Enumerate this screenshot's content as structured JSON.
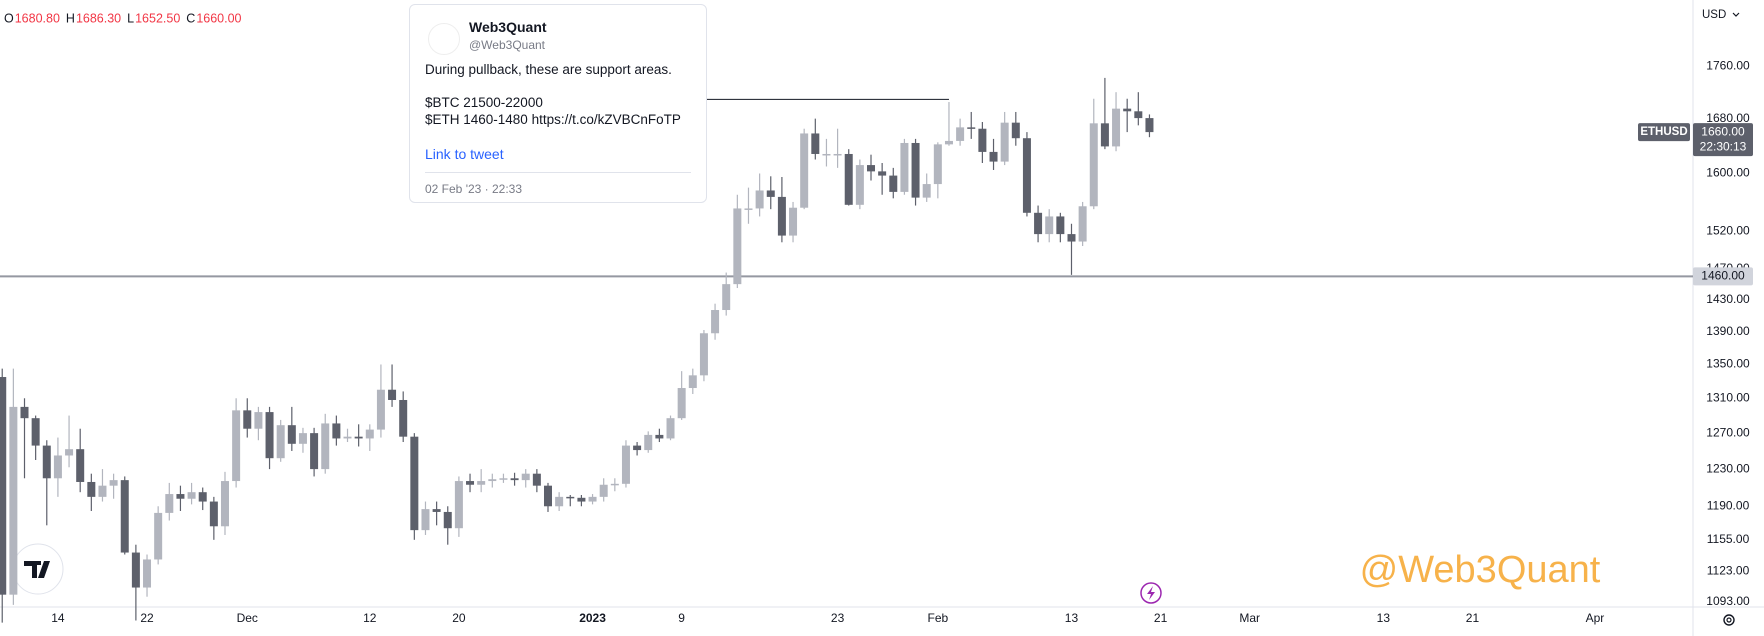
{
  "chart_data": {
    "type": "candlestick",
    "ohlc_legend": [
      {
        "label": "O",
        "value": "1680.80"
      },
      {
        "label": "H",
        "value": "1686.30"
      },
      {
        "label": "L",
        "value": "1652.50"
      },
      {
        "label": "C",
        "value": "1660.00"
      }
    ],
    "currency": "USD",
    "symbol": "ETHUSD",
    "open": [
      1335,
      1100,
      1300,
      1287,
      1256,
      1220,
      1245,
      1252,
      1216,
      1200,
      1212,
      1218,
      1142,
      1107,
      1135,
      1183,
      1203,
      1198,
      1205,
      1195,
      1169,
      1217,
      1296,
      1275,
      1294,
      1242,
      1279,
      1258,
      1270,
      1230,
      1281,
      1264,
      1266,
      1264,
      1274,
      1320,
      1308,
      1266,
      1165,
      1187,
      1184,
      1167,
      1217,
      1213,
      1217,
      1219,
      1220,
      1218,
      1225,
      1212,
      1190,
      1200,
      1199,
      1195,
      1200,
      1213,
      1214,
      1256,
      1251,
      1268,
      1264,
      1287,
      1322,
      1337,
      1388,
      1417,
      1450,
      1551,
      1551,
      1576,
      1567,
      1514,
      1552,
      1658,
      1628,
      1628,
      1628,
      1556,
      1612,
      1603,
      1597,
      1574,
      1644,
      1566,
      1585,
      1642,
      1647,
      1667,
      1665,
      1631,
      1617,
      1674,
      1651,
      1545,
      1516,
      1540,
      1516,
      1506,
      1554,
      1673,
      1639,
      1695,
      1691,
      1680.8
    ],
    "high": [
      1345,
      1345,
      1310,
      1290,
      1262,
      1265,
      1290,
      1275,
      1225,
      1230,
      1225,
      1222,
      1150,
      1140,
      1190,
      1215,
      1212,
      1215,
      1210,
      1200,
      1227,
      1310,
      1310,
      1300,
      1300,
      1285,
      1300,
      1276,
      1276,
      1292,
      1290,
      1275,
      1280,
      1280,
      1350,
      1350,
      1318,
      1270,
      1195,
      1195,
      1190,
      1222,
      1225,
      1230,
      1225,
      1225,
      1226,
      1230,
      1230,
      1215,
      1205,
      1202,
      1202,
      1203,
      1220,
      1220,
      1262,
      1260,
      1272,
      1275,
      1290,
      1342,
      1345,
      1392,
      1425,
      1465,
      1570,
      1580,
      1600,
      1596,
      1595,
      1560,
      1665,
      1680,
      1650,
      1665,
      1635,
      1620,
      1627,
      1615,
      1608,
      1650,
      1650,
      1600,
      1645,
      1705,
      1680,
      1690,
      1675,
      1650,
      1690,
      1690,
      1660,
      1555,
      1550,
      1545,
      1530,
      1560,
      1710,
      1742,
      1720,
      1710,
      1720,
      1686.3
    ],
    "low": [
      1073,
      1090,
      1220,
      1240,
      1170,
      1200,
      1232,
      1205,
      1185,
      1195,
      1198,
      1140,
      1075,
      1098,
      1130,
      1175,
      1185,
      1192,
      1186,
      1155,
      1160,
      1210,
      1265,
      1262,
      1230,
      1238,
      1250,
      1248,
      1222,
      1225,
      1256,
      1260,
      1255,
      1250,
      1265,
      1300,
      1260,
      1155,
      1160,
      1170,
      1150,
      1158,
      1205,
      1205,
      1210,
      1215,
      1212,
      1210,
      1205,
      1184,
      1185,
      1190,
      1190,
      1192,
      1195,
      1206,
      1210,
      1245,
      1248,
      1260,
      1262,
      1285,
      1315,
      1330,
      1380,
      1410,
      1445,
      1530,
      1540,
      1550,
      1505,
      1505,
      1550,
      1620,
      1610,
      1608,
      1555,
      1550,
      1590,
      1570,
      1565,
      1570,
      1555,
      1560,
      1565,
      1640,
      1640,
      1650,
      1615,
      1605,
      1612,
      1640,
      1540,
      1505,
      1505,
      1505,
      1462,
      1500,
      1550,
      1635,
      1632,
      1660,
      1670,
      1652.5
    ],
    "close": [
      1100,
      1300,
      1287,
      1256,
      1220,
      1245,
      1252,
      1216,
      1200,
      1212,
      1218,
      1142,
      1107,
      1135,
      1183,
      1203,
      1198,
      1205,
      1195,
      1169,
      1217,
      1296,
      1275,
      1294,
      1242,
      1279,
      1258,
      1270,
      1230,
      1281,
      1264,
      1266,
      1264,
      1274,
      1320,
      1308,
      1266,
      1165,
      1187,
      1184,
      1167,
      1217,
      1213,
      1217,
      1219,
      1220,
      1218,
      1225,
      1212,
      1190,
      1200,
      1199,
      1195,
      1200,
      1213,
      1214,
      1256,
      1251,
      1268,
      1264,
      1287,
      1322,
      1337,
      1388,
      1417,
      1450,
      1551,
      1551,
      1576,
      1567,
      1514,
      1552,
      1658,
      1628,
      1628,
      1628,
      1556,
      1612,
      1603,
      1597,
      1574,
      1644,
      1566,
      1585,
      1642,
      1647,
      1667,
      1665,
      1631,
      1617,
      1674,
      1651,
      1545,
      1516,
      1540,
      1516,
      1506,
      1554,
      1673,
      1639,
      1695,
      1691,
      1680.8,
      1660
    ],
    "up_color": "#b2b5be",
    "down_color": "#5d606b",
    "xlim": [
      -0.2,
      151.8
    ],
    "xticks": [
      {
        "value": 5,
        "label": "14"
      },
      {
        "value": 13,
        "label": "22"
      },
      {
        "value": 22,
        "label": "Dec"
      },
      {
        "value": 33,
        "label": "12"
      },
      {
        "value": 41,
        "label": "20"
      },
      {
        "value": 53,
        "label": "2023"
      },
      {
        "value": 61,
        "label": "9"
      },
      {
        "value": 75,
        "label": "23"
      },
      {
        "value": 84,
        "label": "Feb"
      },
      {
        "value": 96,
        "label": "13"
      },
      {
        "value": 104,
        "label": "21"
      },
      {
        "value": 112,
        "label": "Mar"
      },
      {
        "value": 124,
        "label": "13"
      },
      {
        "value": 132,
        "label": "21"
      },
      {
        "value": 143,
        "label": "Apr"
      }
    ],
    "log_scale": true,
    "ylim": [
      1088,
      1867
    ],
    "yticks": [
      {
        "value": 1093,
        "label": "1093.00"
      },
      {
        "value": 1123,
        "label": "1123.00"
      },
      {
        "value": 1155,
        "label": "1155.00"
      },
      {
        "value": 1190,
        "label": "1190.00"
      },
      {
        "value": 1230,
        "label": "1230.00"
      },
      {
        "value": 1270,
        "label": "1270.00"
      },
      {
        "value": 1310,
        "label": "1310.00"
      },
      {
        "value": 1350,
        "label": "1350.00"
      },
      {
        "value": 1390,
        "label": "1390.00"
      },
      {
        "value": 1430,
        "label": "1430.00"
      },
      {
        "value": 1470,
        "label": "1470.00"
      },
      {
        "value": 1520,
        "label": "1520.00"
      },
      {
        "value": 1600,
        "label": "1600.00"
      },
      {
        "value": 1680,
        "label": "1680.00"
      },
      {
        "value": 1760,
        "label": "1760.00"
      }
    ],
    "last_price": {
      "value": 1660,
      "label": "1660.00",
      "countdown": "22:30:13"
    },
    "hline": {
      "value": 1460,
      "label": "1460.00",
      "color": "#9598a1"
    },
    "trendline": {
      "value": 1709,
      "x": [
        63,
        85
      ]
    },
    "watermark": "@Web3Quant"
  },
  "tweet": {
    "author": "Web3Quant",
    "handle": "@Web3Quant",
    "lines": [
      "During pullback, these are support areas.",
      "$BTC 21500-22000",
      "$ETH 1460-1480 https://t.co/kZVBCnFoTP"
    ],
    "link": "Link to tweet",
    "date": "02 Feb '23 · 22:33"
  }
}
